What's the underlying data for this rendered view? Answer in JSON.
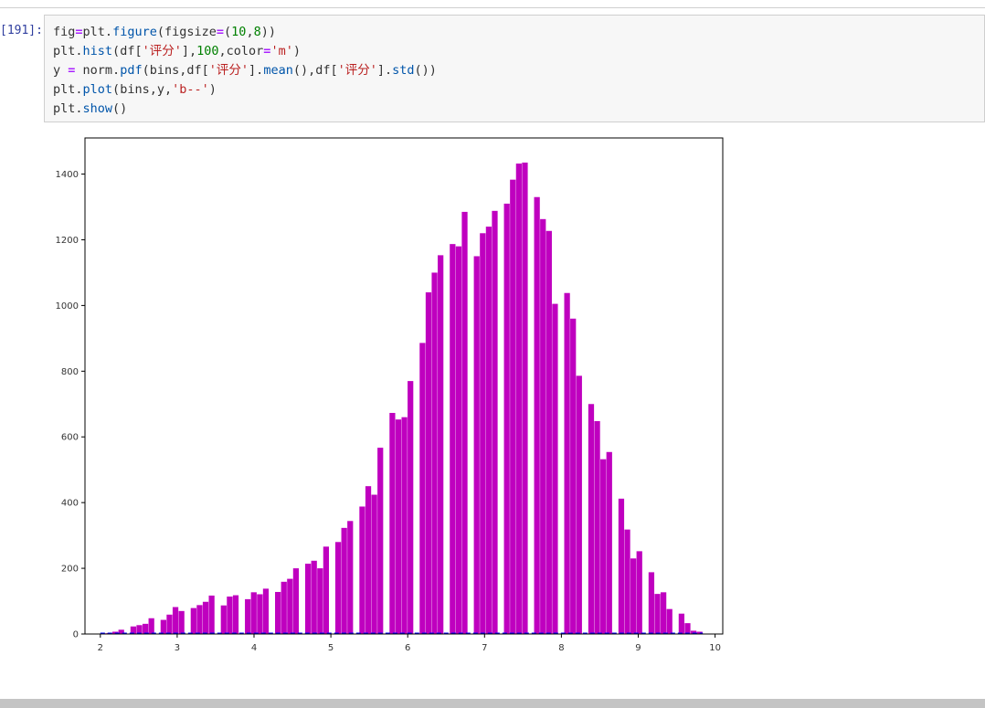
{
  "notebook": {
    "prompt": "[191]:",
    "code_lines": [
      [
        [
          "name",
          "fig"
        ],
        [
          "op",
          "="
        ],
        [
          "name",
          "plt"
        ],
        [
          "punc",
          "."
        ],
        [
          "attr",
          "figure"
        ],
        [
          "punc",
          "("
        ],
        [
          "name",
          "figsize"
        ],
        [
          "op",
          "="
        ],
        [
          "punc",
          "("
        ],
        [
          "num",
          "10"
        ],
        [
          "punc",
          ","
        ],
        [
          "num",
          "8"
        ],
        [
          "punc",
          "))"
        ]
      ],
      [
        [
          "name",
          "plt"
        ],
        [
          "punc",
          "."
        ],
        [
          "attr",
          "hist"
        ],
        [
          "punc",
          "("
        ],
        [
          "name",
          "df"
        ],
        [
          "punc",
          "["
        ],
        [
          "str",
          "'评分'"
        ],
        [
          "punc",
          "],"
        ],
        [
          "num",
          "100"
        ],
        [
          "punc",
          ","
        ],
        [
          "name",
          "color"
        ],
        [
          "op",
          "="
        ],
        [
          "str",
          "'m'"
        ],
        [
          "punc",
          ")"
        ]
      ],
      [
        [
          "name",
          "y "
        ],
        [
          "op",
          "="
        ],
        [
          "name",
          " norm"
        ],
        [
          "punc",
          "."
        ],
        [
          "attr",
          "pdf"
        ],
        [
          "punc",
          "("
        ],
        [
          "name",
          "bins"
        ],
        [
          "punc",
          ","
        ],
        [
          "name",
          "df"
        ],
        [
          "punc",
          "["
        ],
        [
          "str",
          "'评分'"
        ],
        [
          "punc",
          "]."
        ],
        [
          "attr",
          "mean"
        ],
        [
          "punc",
          "(),"
        ],
        [
          "name",
          "df"
        ],
        [
          "punc",
          "["
        ],
        [
          "str",
          "'评分'"
        ],
        [
          "punc",
          "]."
        ],
        [
          "attr",
          "std"
        ],
        [
          "punc",
          "())"
        ]
      ],
      [
        [
          "name",
          "plt"
        ],
        [
          "punc",
          "."
        ],
        [
          "attr",
          "plot"
        ],
        [
          "punc",
          "("
        ],
        [
          "name",
          "bins"
        ],
        [
          "punc",
          ","
        ],
        [
          "name",
          "y"
        ],
        [
          "punc",
          ","
        ],
        [
          "str",
          "'b--'"
        ],
        [
          "punc",
          ")"
        ]
      ],
      [
        [
          "name",
          "plt"
        ],
        [
          "punc",
          "."
        ],
        [
          "attr",
          "show"
        ],
        [
          "punc",
          "()"
        ]
      ]
    ]
  },
  "chart_data": {
    "type": "bar",
    "x_start": 2.0,
    "bin_width": 0.0784,
    "values": [
      2,
      3,
      7,
      13,
      0,
      23,
      27,
      31,
      48,
      0,
      43,
      59,
      82,
      70,
      0,
      79,
      88,
      98,
      117,
      0,
      87,
      114,
      118,
      0,
      106,
      127,
      121,
      138,
      0,
      128,
      159,
      168,
      200,
      0,
      214,
      223,
      200,
      266,
      0,
      280,
      323,
      344,
      0,
      388,
      450,
      424,
      567,
      0,
      673,
      653,
      660,
      770,
      0,
      886,
      1040,
      1100,
      1153,
      0,
      1187,
      1180,
      1285,
      0,
      1150,
      1220,
      1240,
      1288,
      0,
      1310,
      1383,
      1432,
      1435,
      0,
      1330,
      1263,
      1227,
      1005,
      0,
      1038,
      960,
      786,
      0,
      700,
      648,
      532,
      554,
      0,
      412,
      318,
      230,
      252,
      0,
      188,
      122,
      127,
      76,
      0,
      62,
      33,
      10,
      7
    ],
    "bar_color": "#bf00bf",
    "line_color": "#0000ff",
    "line_style": "dashed",
    "xlim": [
      1.8,
      10.1
    ],
    "ylim": [
      0,
      1510
    ],
    "xticks": [
      2,
      3,
      4,
      5,
      6,
      7,
      8,
      9,
      10
    ],
    "yticks": [
      0,
      200,
      400,
      600,
      800,
      1000,
      1200,
      1400
    ],
    "grid": false
  }
}
